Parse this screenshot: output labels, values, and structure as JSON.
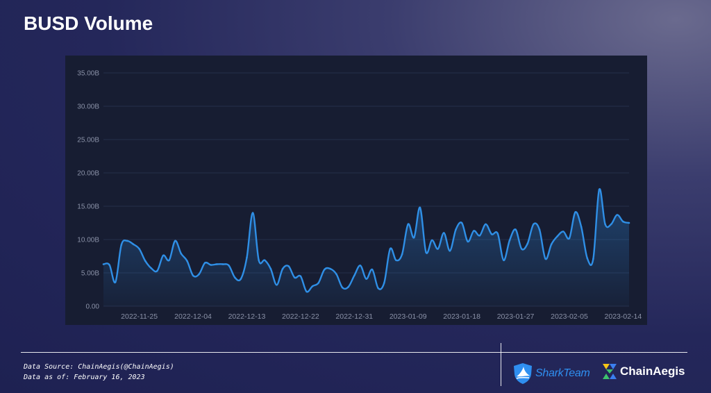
{
  "title": "BUSD Volume",
  "footer": {
    "source": "Data Source: ChainAegis(@ChainAegis)",
    "asof": "Data as of: February 16, 2023"
  },
  "logos": {
    "shark_team": "SharkTeam",
    "chain_aegis": "ChainAegis"
  },
  "colors": {
    "line": "#2f8fe6",
    "panel": "#171d32",
    "grid": "#26304a",
    "tick": "#8b92a8",
    "shark": "#2f8ff0",
    "chain_yellow": "#f5c518",
    "chain_green": "#3ec46d",
    "chain_blue": "#3b7ff0"
  },
  "chart_data": {
    "type": "area",
    "y_tick_labels": [
      "0.00",
      "5.00B",
      "10.00B",
      "15.00B",
      "20.00B",
      "25.00B",
      "30.00B",
      "35.00B"
    ],
    "ylim": [
      0,
      35
    ],
    "y_unit": "B",
    "x_tick_labels": [
      "2022-11-25",
      "2022-12-04",
      "2022-12-13",
      "2022-12-22",
      "2022-12-31",
      "2023-01-09",
      "2023-01-18",
      "2023-01-27",
      "2023-02-05",
      "2023-02-14"
    ],
    "x_start": "2022-11-19",
    "x_end": "2023-02-15",
    "grid": true,
    "legend": "none",
    "x": [
      "2022-11-19",
      "2022-11-20",
      "2022-11-21",
      "2022-11-22",
      "2022-11-23",
      "2022-11-24",
      "2022-11-25",
      "2022-11-26",
      "2022-11-27",
      "2022-11-28",
      "2022-11-29",
      "2022-11-30",
      "2022-12-01",
      "2022-12-02",
      "2022-12-03",
      "2022-12-04",
      "2022-12-05",
      "2022-12-06",
      "2022-12-07",
      "2022-12-08",
      "2022-12-09",
      "2022-12-10",
      "2022-12-11",
      "2022-12-12",
      "2022-12-13",
      "2022-12-14",
      "2022-12-15",
      "2022-12-16",
      "2022-12-17",
      "2022-12-18",
      "2022-12-19",
      "2022-12-20",
      "2022-12-21",
      "2022-12-22",
      "2022-12-23",
      "2022-12-24",
      "2022-12-25",
      "2022-12-26",
      "2022-12-27",
      "2022-12-28",
      "2022-12-29",
      "2022-12-30",
      "2022-12-31",
      "2023-01-01",
      "2023-01-02",
      "2023-01-03",
      "2023-01-04",
      "2023-01-05",
      "2023-01-06",
      "2023-01-07",
      "2023-01-08",
      "2023-01-09",
      "2023-01-10",
      "2023-01-11",
      "2023-01-12",
      "2023-01-13",
      "2023-01-14",
      "2023-01-15",
      "2023-01-16",
      "2023-01-17",
      "2023-01-18",
      "2023-01-19",
      "2023-01-20",
      "2023-01-21",
      "2023-01-22",
      "2023-01-23",
      "2023-01-24",
      "2023-01-25",
      "2023-01-26",
      "2023-01-27",
      "2023-01-28",
      "2023-01-29",
      "2023-01-30",
      "2023-01-31",
      "2023-02-01",
      "2023-02-02",
      "2023-02-03",
      "2023-02-04",
      "2023-02-05",
      "2023-02-06",
      "2023-02-07",
      "2023-02-08",
      "2023-02-09",
      "2023-02-10",
      "2023-02-11",
      "2023-02-12",
      "2023-02-13",
      "2023-02-14",
      "2023-02-15"
    ],
    "values": [
      6.3,
      6.2,
      3.6,
      9.2,
      9.8,
      9.3,
      8.6,
      6.8,
      5.7,
      5.3,
      7.6,
      6.9,
      9.8,
      7.9,
      6.8,
      4.6,
      4.8,
      6.5,
      6.2,
      6.3,
      6.3,
      6.1,
      4.3,
      4.1,
      7.3,
      14.0,
      6.9,
      6.9,
      5.6,
      3.2,
      5.6,
      6.0,
      4.3,
      4.5,
      2.2,
      3.0,
      3.5,
      5.5,
      5.6,
      4.8,
      2.8,
      2.9,
      4.6,
      6.1,
      4.1,
      5.5,
      2.7,
      3.5,
      8.6,
      6.9,
      7.8,
      12.3,
      10.3,
      14.8,
      8.1,
      9.9,
      8.6,
      11.0,
      8.3,
      11.5,
      12.5,
      9.7,
      11.3,
      10.6,
      12.3,
      10.8,
      10.9,
      6.9,
      9.9,
      11.5,
      8.6,
      9.4,
      12.3,
      11.5,
      7.1,
      9.3,
      10.5,
      11.2,
      10.2,
      14.1,
      11.9,
      7.2,
      7.1,
      17.5,
      12.3,
      12.3,
      13.7,
      12.7,
      12.5
    ]
  }
}
